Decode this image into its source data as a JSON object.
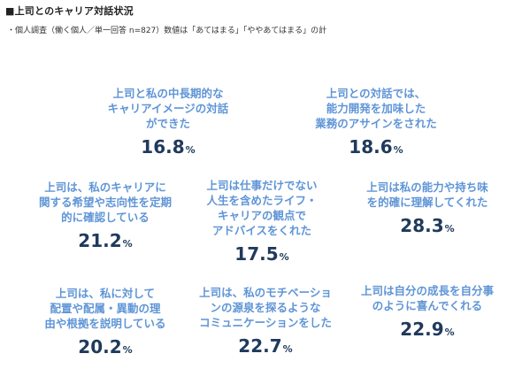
{
  "header": {
    "title": "■上司とのキャリア対話状況",
    "subtitle": "・個人調査（働く個人／単一回答 n=827）数値は「あてはまる」「ややあてはまる」の計"
  },
  "chart_data": {
    "type": "table",
    "unit": "%",
    "items": [
      {
        "label": "上司と私の中長期的な\nキャリアイメージの対話\nができた",
        "value": 16.8,
        "display": "16.8"
      },
      {
        "label": "上司との対話では、\n能力開発を加味した\n業務のアサインをされた",
        "value": 18.6,
        "display": "18.6"
      },
      {
        "label": "上司は、私のキャリアに\n関する希望や志向性を定期\n的に確認している",
        "value": 21.2,
        "display": "21.2"
      },
      {
        "label": "上司は仕事だけでない\n人生を含めたライフ・\nキャリアの観点で\nアドバイスをくれた",
        "value": 17.5,
        "display": "17.5"
      },
      {
        "label": "上司は私の能力や持ち味\nを的確に理解してくれた",
        "value": 28.3,
        "display": "28.3"
      },
      {
        "label": "上司は、私に対して\n配置や配属・異動の理\n由や根拠を説明している",
        "value": 20.2,
        "display": "20.2"
      },
      {
        "label": "上司は、私のモチベーショ\nンの源泉を探るような\nコミュニケーションをした",
        "value": 22.7,
        "display": "22.7"
      },
      {
        "label": "上司は自分の成長を自分事\nのように喜んでくれる",
        "value": 22.9,
        "display": "22.9"
      }
    ]
  }
}
